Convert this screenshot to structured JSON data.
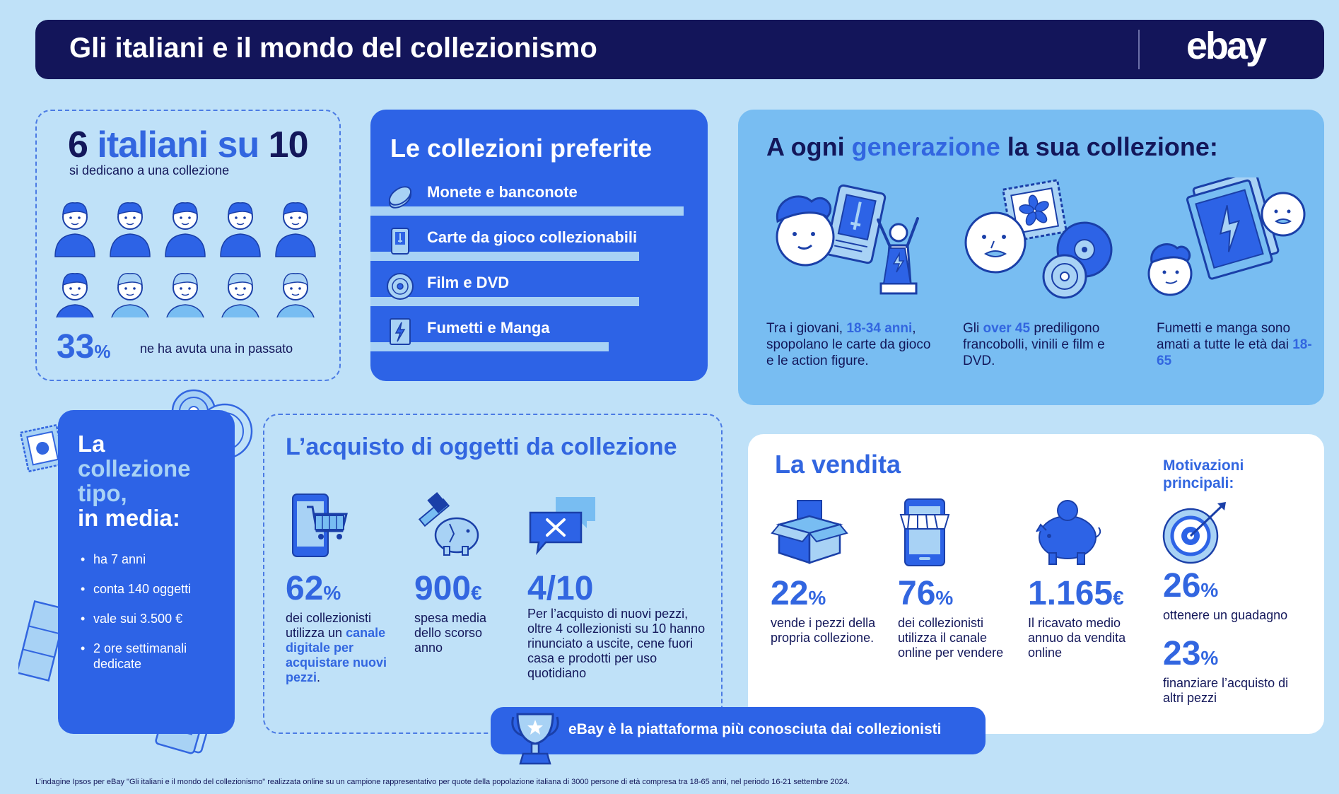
{
  "header": {
    "title": "Gli italiani e il mondo del collezionismo",
    "logo": "ebay"
  },
  "italians": {
    "stat_number": "6",
    "stat_text": "italiani su",
    "stat_total": "10",
    "subtitle": "si dedicano a una collezione",
    "past_value": "33",
    "past_unit": "%",
    "past_label": "ne ha avuta una in passato",
    "people_icons_highlighted": 6,
    "people_icons_total": 10
  },
  "favorites": {
    "title": "Le collezioni preferite",
    "items": [
      {
        "label": "Monete e banconote",
        "icon": "coin-icon",
        "bar": 1.0
      },
      {
        "label": "Carte da gioco collezionabili",
        "icon": "trading-card-icon",
        "bar": 0.83
      },
      {
        "label": "Film e DVD",
        "icon": "dvd-icon",
        "bar": 0.83
      },
      {
        "label": "Fumetti e Manga",
        "icon": "comic-icon",
        "bar": 0.72
      }
    ]
  },
  "generation": {
    "title_part1": "A ogni",
    "title_highlight": "generazione",
    "title_part2": "la sua collezione:",
    "items": [
      {
        "pre": "Tra i giovani,",
        "highlight": "18-34 anni",
        "post": ", spopolano le carte da gioco e le action figure."
      },
      {
        "pre": "Gli",
        "highlight": "over 45",
        "post": "prediligono francobolli, vinili e film e DVD."
      },
      {
        "pre": "Fumetti e manga sono amati a tutte le età dai",
        "highlight": "18-65",
        "post": ""
      }
    ]
  },
  "typical": {
    "title_line1": "La",
    "title_line2": "collezione",
    "title_line3": "tipo,",
    "title_line4": "in media:",
    "items": [
      "ha 7 anni",
      "conta 140 oggetti",
      "vale sui 3.500 €",
      "2 ore settimanali dedicate"
    ]
  },
  "purchase": {
    "title": "L’acquisto di oggetti da collezione",
    "cols": [
      {
        "value": "62",
        "unit": "%",
        "text_pre": "dei collezionisti utilizza un",
        "text_hl": "canale digitale per acquistare nuovi pezzi",
        "text_post": "."
      },
      {
        "value": "900",
        "unit": "€",
        "text_pre": "spesa media dello scorso anno",
        "text_hl": "",
        "text_post": ""
      },
      {
        "value": "4/10",
        "unit": "",
        "text_pre": "Per l’acquisto di nuovi pezzi, oltre 4 collezionisti su 10 hanno rinunciato a uscite, cene fuori casa e prodotti per uso quotidiano",
        "text_hl": "",
        "text_post": ""
      }
    ]
  },
  "banner": {
    "text": "eBay è la piattaforma più conosciuta dai collezionisti"
  },
  "sale": {
    "title": "La vendita",
    "cols": [
      {
        "value": "22",
        "unit": "%",
        "text": "vende i pezzi della propria collezione."
      },
      {
        "value": "76",
        "unit": "%",
        "text": "dei collezionisti utilizza il canale online per vendere"
      },
      {
        "value": "1.165",
        "unit": "€",
        "text": "Il ricavato medio annuo da vendita online"
      }
    ],
    "motivations_title": "Motivazioni principali:",
    "motivations": [
      {
        "value": "26",
        "unit": "%",
        "text": "ottenere un guadagno"
      },
      {
        "value": "23",
        "unit": "%",
        "text": "finanziare l’acquisto di altri pezzi"
      }
    ]
  },
  "footer": "L’indagine Ipsos per eBay \"Gli italiani e il mondo del collezionismo\" realizzata online su un campione rappresentativo per quote della popolazione italiana di 3000 persone di età compresa tra 18-65 anni, nel periodo 16-21 settembre 2024.",
  "colors": {
    "navy": "#13155a",
    "blue": "#2d63e6",
    "light_blue": "#a8d2f5",
    "background": "#bfe1f8"
  }
}
